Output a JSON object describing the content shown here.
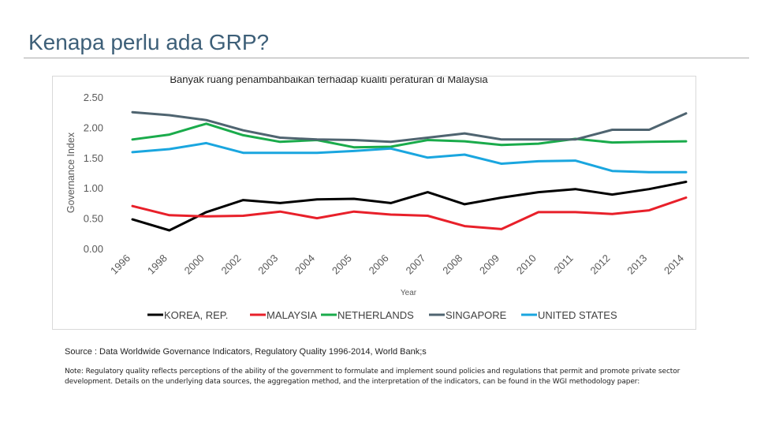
{
  "slide": {
    "title": "Kenapa perlu ada GRP?",
    "source": "Source : Data Worldwide Governance Indicators, Regulatory Quality 1996-2014, World Bank;s",
    "note": "Note: Regulatory quality reflects perceptions of the ability of the government to formulate and implement sound policies and regulations that permit and promote private sector development. Details on the underlying data sources, the aggregation method, and the interpretation of the indicators, can be found in the WGI methodology paper:"
  },
  "chart_data": {
    "type": "line",
    "title": "Banyak ruang penambahbaikan terhadap kualiti peraturan di Malaysia",
    "xlabel": "Year",
    "ylabel": "Governance Index",
    "ylim": [
      0,
      2.5
    ],
    "yticks": [
      0,
      0.5,
      1,
      1.5,
      2,
      2.5
    ],
    "ytick_labels": [
      "0.00",
      "0.50",
      "1.00",
      "1.50",
      "2.00",
      "2.50"
    ],
    "categories": [
      "1996",
      "1998",
      "2000",
      "2002",
      "2003",
      "2004",
      "2005",
      "2006",
      "2007",
      "2008",
      "2009",
      "2010",
      "2011",
      "2012",
      "2013",
      "2014"
    ],
    "grid": false,
    "legend_position": "bottom",
    "series": [
      {
        "name": "KOREA, REP.",
        "color": "#000000",
        "values": [
          0.48,
          0.3,
          0.6,
          0.8,
          0.75,
          0.81,
          0.82,
          0.75,
          0.93,
          0.73,
          0.84,
          0.93,
          0.98,
          0.89,
          0.98,
          1.1
        ]
      },
      {
        "name": "MALAYSIA",
        "color": "#e8202a",
        "values": [
          0.7,
          0.55,
          0.53,
          0.54,
          0.61,
          0.5,
          0.61,
          0.56,
          0.54,
          0.37,
          0.32,
          0.6,
          0.6,
          0.57,
          0.63,
          0.84
        ]
      },
      {
        "name": "NETHERLANDS",
        "color": "#1aab4b",
        "values": [
          1.8,
          1.88,
          2.06,
          1.87,
          1.76,
          1.79,
          1.67,
          1.68,
          1.79,
          1.77,
          1.71,
          1.73,
          1.81,
          1.75,
          1.76,
          1.77
        ]
      },
      {
        "name": "SINGAPORE",
        "color": "#4f6470",
        "values": [
          2.25,
          2.2,
          2.12,
          1.95,
          1.83,
          1.8,
          1.79,
          1.76,
          1.83,
          1.9,
          1.8,
          1.8,
          1.8,
          1.96,
          1.96,
          2.23
        ]
      },
      {
        "name": "UNITED STATES",
        "color": "#1aa6df",
        "values": [
          1.59,
          1.64,
          1.74,
          1.58,
          1.58,
          1.58,
          1.61,
          1.65,
          1.5,
          1.55,
          1.4,
          1.44,
          1.45,
          1.28,
          1.26,
          1.26
        ]
      }
    ]
  }
}
